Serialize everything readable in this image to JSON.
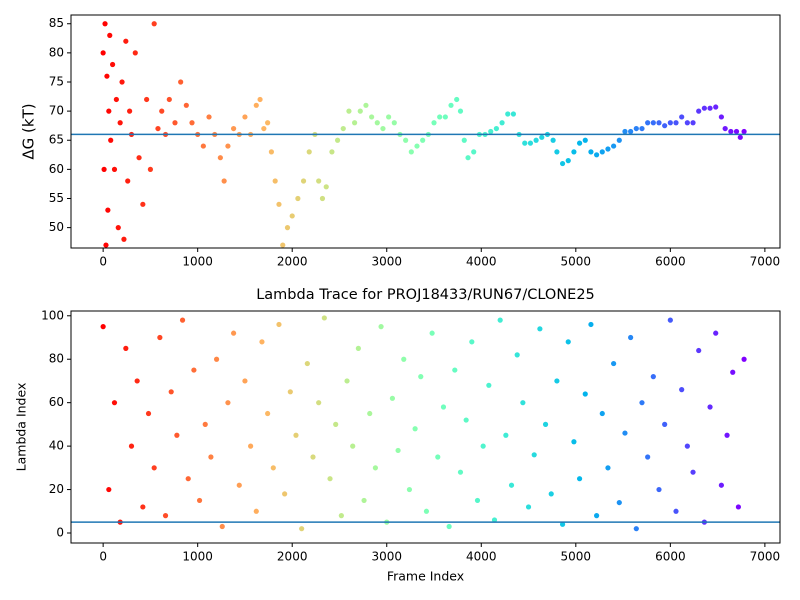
{
  "chart_data": [
    {
      "type": "scatter",
      "ylabel": "ΔG (kT)",
      "colormap": "rainbow_r",
      "hline": 66,
      "hline_color": "#1f77b4",
      "xlim": [
        -340,
        7160
      ],
      "xticks": [
        0,
        1000,
        2000,
        3000,
        4000,
        5000,
        6000,
        7000
      ],
      "ylim": [
        46.5,
        86.5
      ],
      "yticks": [
        50,
        55,
        60,
        65,
        70,
        75,
        80,
        85
      ],
      "x": [
        0,
        10,
        20,
        30,
        40,
        50,
        60,
        70,
        80,
        100,
        120,
        140,
        160,
        180,
        200,
        220,
        240,
        260,
        280,
        300,
        340,
        380,
        420,
        460,
        500,
        540,
        580,
        620,
        660,
        700,
        760,
        820,
        880,
        940,
        1000,
        1060,
        1120,
        1180,
        1240,
        1280,
        1320,
        1380,
        1440,
        1500,
        1560,
        1620,
        1660,
        1700,
        1740,
        1780,
        1820,
        1860,
        1900,
        1950,
        2000,
        2060,
        2120,
        2180,
        2240,
        2280,
        2320,
        2360,
        2420,
        2480,
        2540,
        2600,
        2660,
        2720,
        2780,
        2840,
        2900,
        2960,
        3020,
        3080,
        3140,
        3200,
        3260,
        3320,
        3380,
        3440,
        3500,
        3560,
        3620,
        3680,
        3740,
        3780,
        3820,
        3860,
        3920,
        3980,
        4040,
        4100,
        4160,
        4220,
        4280,
        4340,
        4400,
        4460,
        4520,
        4580,
        4640,
        4700,
        4760,
        4800,
        4860,
        4920,
        4980,
        5040,
        5100,
        5160,
        5220,
        5280,
        5340,
        5400,
        5460,
        5520,
        5580,
        5640,
        5700,
        5760,
        5820,
        5880,
        5940,
        6000,
        6060,
        6120,
        6180,
        6240,
        6300,
        6360,
        6420,
        6480,
        6540,
        6580,
        6640,
        6700,
        6740,
        6780
      ],
      "values": [
        80,
        60,
        85,
        47,
        76,
        53,
        70,
        83,
        65,
        78,
        60,
        72,
        50,
        68,
        75,
        48,
        82,
        58,
        70,
        66,
        80,
        62,
        54,
        72,
        60,
        85,
        67,
        70,
        66,
        72,
        68,
        75,
        71,
        68,
        66,
        64,
        69,
        66,
        62,
        58,
        64,
        67,
        66,
        69,
        66,
        71,
        72,
        67,
        68,
        63,
        58,
        54,
        47,
        50,
        52,
        55,
        58,
        63,
        66,
        58,
        55,
        57,
        63,
        65,
        67,
        70,
        68,
        70,
        71,
        69,
        68,
        67,
        69,
        68,
        66,
        65,
        63,
        64,
        65,
        66,
        68,
        69,
        69,
        71,
        72,
        70,
        65,
        62,
        63,
        66,
        66,
        66.5,
        67,
        68,
        69.5,
        69.5,
        66,
        64.5,
        64.5,
        65,
        65.5,
        66,
        65,
        63,
        61,
        61.5,
        63,
        64.5,
        65,
        63,
        62.5,
        63,
        63.5,
        64,
        65,
        66.5,
        66.5,
        67,
        67,
        68,
        68,
        68,
        67.5,
        68,
        68,
        69,
        68,
        68,
        70,
        70.5,
        70.5,
        70.7,
        69,
        67,
        66.5,
        66.5,
        65.5,
        66.5
      ]
    },
    {
      "type": "scatter",
      "title": "Lambda Trace for PROJ18433/RUN67/CLONE25",
      "xlabel": "Frame Index",
      "ylabel": "Lambda Index",
      "colormap": "rainbow_r",
      "hline": 5,
      "hline_color": "#1f77b4",
      "xlim": [
        -340,
        7160
      ],
      "xticks": [
        0,
        1000,
        2000,
        3000,
        4000,
        5000,
        6000,
        7000
      ],
      "ylim": [
        -4.6,
        102.2
      ],
      "yticks": [
        0,
        20,
        40,
        60,
        80,
        100
      ],
      "x": [
        0,
        60,
        120,
        180,
        240,
        300,
        360,
        420,
        480,
        540,
        600,
        660,
        720,
        780,
        840,
        900,
        960,
        1020,
        1080,
        1140,
        1200,
        1260,
        1320,
        1380,
        1440,
        1500,
        1560,
        1620,
        1680,
        1740,
        1800,
        1860,
        1920,
        1980,
        2040,
        2100,
        2160,
        2220,
        2280,
        2340,
        2400,
        2460,
        2520,
        2580,
        2640,
        2700,
        2760,
        2820,
        2880,
        2940,
        3000,
        3060,
        3120,
        3180,
        3240,
        3300,
        3360,
        3420,
        3480,
        3540,
        3600,
        3660,
        3720,
        3780,
        3840,
        3900,
        3960,
        4020,
        4080,
        4140,
        4200,
        4260,
        4320,
        4380,
        4440,
        4500,
        4560,
        4620,
        4680,
        4740,
        4800,
        4860,
        4920,
        4980,
        5040,
        5100,
        5160,
        5220,
        5280,
        5340,
        5400,
        5460,
        5520,
        5580,
        5640,
        5700,
        5760,
        5820,
        5880,
        5940,
        6000,
        6060,
        6120,
        6180,
        6240,
        6300,
        6360,
        6420,
        6480,
        6540,
        6600,
        6660,
        6720,
        6780
      ],
      "values": [
        95,
        20,
        60,
        5,
        85,
        40,
        70,
        12,
        55,
        30,
        90,
        8,
        65,
        45,
        98,
        25,
        75,
        15,
        50,
        35,
        80,
        3,
        60,
        92,
        22,
        70,
        40,
        10,
        88,
        55,
        30,
        96,
        18,
        65,
        45,
        2,
        78,
        35,
        60,
        99,
        25,
        50,
        8,
        70,
        40,
        85,
        15,
        55,
        30,
        95,
        5,
        62,
        38,
        80,
        20,
        48,
        72,
        10,
        92,
        35,
        58,
        3,
        75,
        28,
        52,
        88,
        15,
        40,
        68,
        6,
        98,
        45,
        22,
        82,
        60,
        12,
        36,
        94,
        50,
        18,
        70,
        4,
        88,
        42,
        25,
        64,
        96,
        8,
        55,
        30,
        78,
        14,
        46,
        90,
        2,
        60,
        35,
        72,
        20,
        50,
        98,
        10,
        66,
        40,
        28,
        84,
        5,
        58,
        92,
        22,
        45,
        74,
        12,
        80
      ]
    }
  ]
}
